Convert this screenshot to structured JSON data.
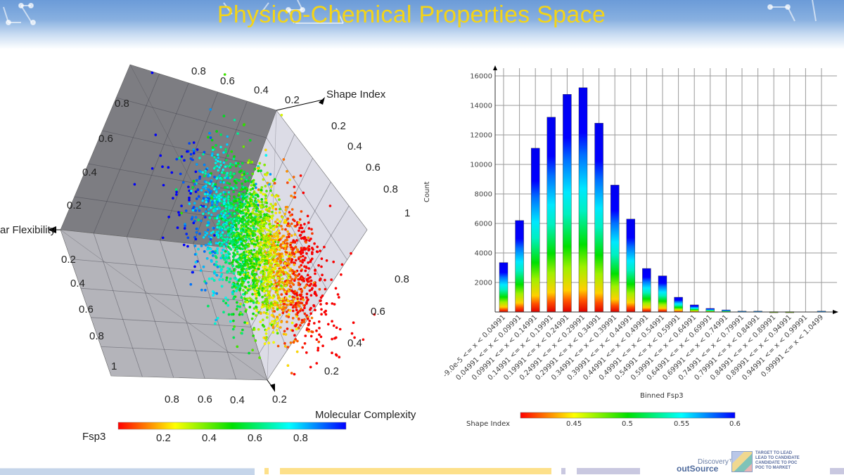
{
  "slide": {
    "title": "Physico-Chemical Properties Space"
  },
  "colors": {
    "title": "#f4d417",
    "header_blue": "#6b9bd8",
    "colormap": [
      "#ff0000",
      "#ffff00",
      "#00e000",
      "#00ffff",
      "#0000ff"
    ],
    "footer_bands": [
      "#c5d5ea",
      "#fde08a",
      "#c9c8e0"
    ]
  },
  "chart_data": [
    {
      "type": "scatter3d",
      "axes": {
        "x": {
          "label": "Shape Index",
          "ticks_top": [
            "0.8",
            "0.6",
            "0.4",
            "0.2"
          ],
          "ticks_right": [
            "0.2",
            "0.4",
            "0.6",
            "0.8",
            "1"
          ]
        },
        "y": {
          "label": "ar Flexibility",
          "ticks_left_upper": [
            "0.8",
            "0.6",
            "0.4",
            "0.2"
          ],
          "ticks_left_lower": [
            "0.2",
            "0.4",
            "0.6",
            "0.8",
            "1"
          ]
        },
        "z": {
          "label": "Molecular Complexity",
          "ticks_bottom": [
            "0.8",
            "0.6",
            "0.4",
            "0.2"
          ],
          "ticks_right_lower": [
            "0.8",
            "0.6",
            "0.4",
            "0.2"
          ]
        }
      },
      "color_by": {
        "label": "Fsp3",
        "ticks": [
          "0.2",
          "0.4",
          "0.6",
          "0.8"
        ],
        "range": [
          0,
          1
        ]
      },
      "grid": true
    },
    {
      "type": "bar",
      "title": "",
      "xlabel": "Binned Fsp3",
      "ylabel": "Count",
      "ylim": [
        0,
        16000
      ],
      "yticks": [
        "2000",
        "4000",
        "6000",
        "8000",
        "10000",
        "12000",
        "14000",
        "16000"
      ],
      "grid": true,
      "categories": [
        "-9.0e-5 <= x < 0.04991",
        "0.04991 <= x < 0.09991",
        "0.09991 <= x < 0.14991",
        "0.14991 <= x < 0.19991",
        "0.19991 <= x < 0.24991",
        "0.24991 <= x < 0.29991",
        "0.29991 <= x < 0.34991",
        "0.34991 <= x < 0.39991",
        "0.39991 <= x < 0.44991",
        "0.44991 <= x < 0.49991",
        "0.49991 <= x < 0.54991",
        "0.54991 <= x < 0.59991",
        "0.59991 <= x < 0.64991",
        "0.64991 <= x < 0.69991",
        "0.69991 <= x < 0.74991",
        "0.74991 <= x < 0.79991",
        "0.79991 <= x < 0.84991",
        "0.84991 <= x < 0.89991",
        "0.89991 <= x < 0.94991",
        "0.94991 <= x < 0.99991",
        "0.99991 <= x < 1.0499"
      ],
      "values": [
        3350,
        6200,
        11100,
        13200,
        14750,
        15200,
        12800,
        8600,
        6300,
        2950,
        2450,
        1000,
        480,
        240,
        140,
        60,
        60,
        20,
        20,
        0,
        60
      ],
      "color_by": {
        "label": "Shape Index",
        "ticks": [
          "0.45",
          "0.5",
          "0.55",
          "0.6"
        ]
      }
    }
  ],
  "footer": {
    "logo_discovery": "Discovery™",
    "logo_outsource": "outSource",
    "logo_lines": [
      "TARGET TO LEAD",
      "LEAD TO CANDIDATE",
      "CANDIDATE TO POC",
      "POC TO MARKET"
    ]
  }
}
